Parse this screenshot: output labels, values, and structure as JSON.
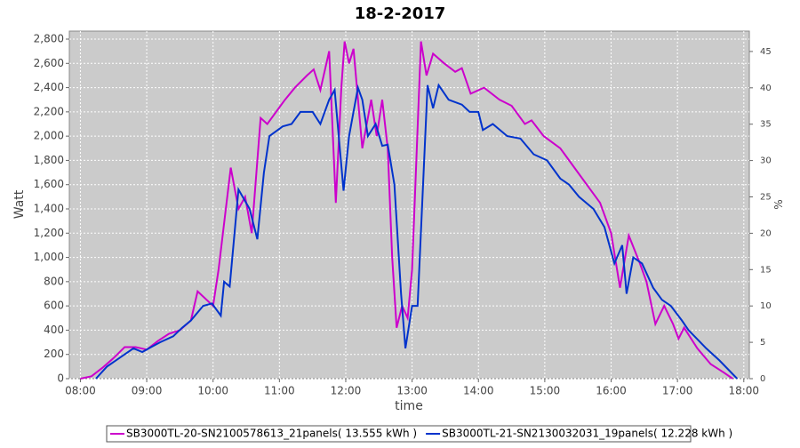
{
  "chart_data": {
    "type": "line",
    "title": "18-2-2017",
    "x_label": "time",
    "y_label": "Watt",
    "y2_label": "%",
    "xlim": [
      "07:50",
      "18:05"
    ],
    "xticks": [
      "08:00",
      "09:00",
      "10:00",
      "11:00",
      "12:00",
      "13:00",
      "14:00",
      "15:00",
      "16:00",
      "17:00",
      "18:00"
    ],
    "ylim": [
      0,
      2866
    ],
    "yticks": [
      0,
      200,
      400,
      600,
      800,
      {
        "value": 1000,
        "label": "1,000"
      },
      {
        "value": 1200,
        "label": "1,200"
      },
      {
        "value": 1400,
        "label": "1,400"
      },
      {
        "value": 1600,
        "label": "1,600"
      },
      {
        "value": 1800,
        "label": "1,800"
      },
      {
        "value": 2000,
        "label": "2,000"
      },
      {
        "value": 2200,
        "label": "2,200"
      },
      {
        "value": 2400,
        "label": "2,400"
      },
      {
        "value": 2600,
        "label": "2,600"
      },
      {
        "value": 2800,
        "label": "2,800"
      }
    ],
    "y2lim": [
      0,
      47.8
    ],
    "y2ticks": [
      0,
      5,
      10,
      15,
      20,
      25,
      30,
      35,
      40,
      45
    ],
    "grid": true,
    "legend": "bottom",
    "series": [
      {
        "name": "SB3000TL-20-SN2100578613_21panels( 13.555 kWh )",
        "color": "#cc00cc",
        "x": [
          "08:00",
          "08:10",
          "08:20",
          "08:30",
          "08:40",
          "08:50",
          "09:00",
          "09:10",
          "09:20",
          "09:30",
          "09:40",
          "09:46",
          "10:00",
          "10:05",
          "10:16",
          "10:23",
          "10:29",
          "10:35",
          "10:43",
          "10:49",
          "10:57",
          "11:05",
          "11:14",
          "11:25",
          "11:31",
          "11:37",
          "11:45",
          "11:51",
          "11:56",
          "11:59",
          "12:03",
          "12:07",
          "12:15",
          "12:23",
          "12:28",
          "12:33",
          "12:38",
          "12:42",
          "12:46",
          "12:51",
          "12:56",
          "13:00",
          "13:08",
          "13:13",
          "13:19",
          "13:29",
          "13:39",
          "13:45",
          "13:53",
          "14:05",
          "14:19",
          "14:30",
          "14:42",
          "14:48",
          "14:59",
          "15:14",
          "15:22",
          "15:30",
          "15:38",
          "15:50",
          "16:00",
          "16:08",
          "16:16",
          "16:26",
          "16:32",
          "16:40",
          "16:48",
          "16:56",
          "17:01",
          "17:06",
          "17:18",
          "17:30",
          "17:42",
          "17:50"
        ],
        "values": [
          0,
          20,
          90,
          170,
          260,
          260,
          240,
          310,
          370,
          400,
          480,
          720,
          600,
          900,
          1740,
          1400,
          1500,
          1200,
          2150,
          2100,
          2200,
          2300,
          2400,
          2500,
          2550,
          2380,
          2700,
          1450,
          2400,
          2780,
          2600,
          2720,
          1900,
          2300,
          2000,
          2300,
          1900,
          1000,
          420,
          600,
          500,
          900,
          2780,
          2500,
          2680,
          2600,
          2530,
          2560,
          2350,
          2400,
          2300,
          2250,
          2100,
          2130,
          2000,
          1900,
          1800,
          1700,
          1600,
          1450,
          1200,
          750,
          1180,
          950,
          800,
          450,
          600,
          450,
          330,
          420,
          250,
          120,
          50,
          0
        ]
      },
      {
        "name": "SB3000TL-21-SN2130032031_19panels( 12.228 kWh )",
        "color": "#0033cc",
        "x": [
          "08:14",
          "08:24",
          "08:40",
          "08:48",
          "08:56",
          "09:04",
          "09:12",
          "09:24",
          "09:32",
          "09:40",
          "09:51",
          "09:59",
          "10:07",
          "10:10",
          "10:15",
          "10:23",
          "10:33",
          "10:40",
          "10:46",
          "10:51",
          "11:03",
          "11:11",
          "11:19",
          "11:30",
          "11:37",
          "11:45",
          "11:50",
          "11:58",
          "12:03",
          "12:11",
          "12:15",
          "12:20",
          "12:27",
          "12:33",
          "12:38",
          "12:44",
          "12:50",
          "12:54",
          "13:00",
          "13:05",
          "13:14",
          "13:19",
          "13:24",
          "13:33",
          "13:45",
          "13:52",
          "14:00",
          "14:04",
          "14:13",
          "14:26",
          "14:38",
          "14:50",
          "15:02",
          "15:14",
          "15:22",
          "15:31",
          "15:44",
          "15:54",
          "16:03",
          "16:10",
          "16:14",
          "16:20",
          "16:28",
          "16:38",
          "16:46",
          "16:54",
          "17:04",
          "17:10",
          "17:26",
          "17:38",
          "17:54"
        ],
        "values": [
          0,
          100,
          200,
          250,
          220,
          260,
          300,
          350,
          420,
          480,
          600,
          620,
          520,
          800,
          760,
          1560,
          1400,
          1150,
          1700,
          2000,
          2080,
          2100,
          2200,
          2200,
          2100,
          2300,
          2380,
          1550,
          2000,
          2400,
          2300,
          2000,
          2100,
          1920,
          1930,
          1600,
          700,
          250,
          600,
          600,
          2420,
          2230,
          2420,
          2300,
          2260,
          2200,
          2200,
          2050,
          2100,
          2000,
          1980,
          1850,
          1800,
          1650,
          1600,
          1500,
          1400,
          1250,
          950,
          1100,
          700,
          1000,
          950,
          750,
          650,
          600,
          480,
          400,
          250,
          150,
          0
        ]
      }
    ]
  }
}
